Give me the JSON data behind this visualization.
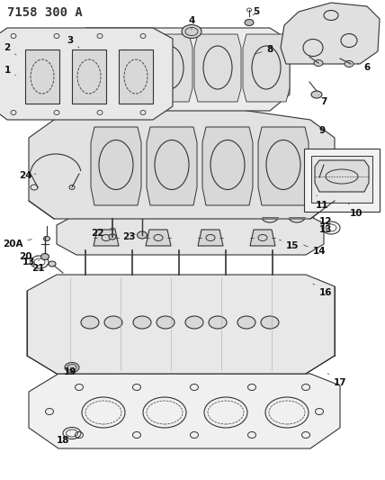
{
  "title": "7158 300 A",
  "title_fontsize": 10,
  "title_fontweight": "bold",
  "bg_color": "#ffffff",
  "line_color": "#333333",
  "fig_width": 4.28,
  "fig_height": 5.33,
  "dpi": 100
}
